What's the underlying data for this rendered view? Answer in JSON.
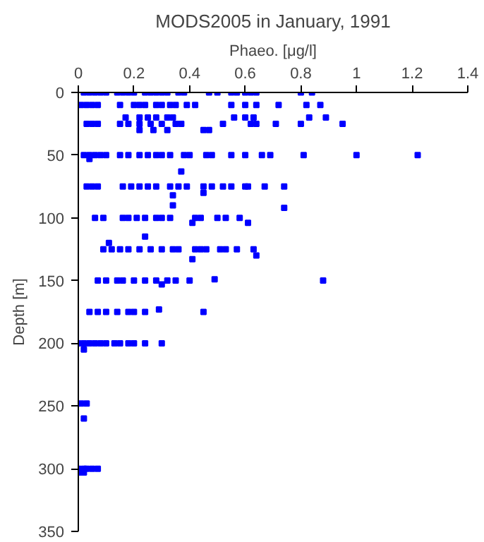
{
  "chart_data": {
    "type": "scatter",
    "title": "MODS2005 in January, 1991",
    "xlabel": "Phaeo. [μg/l]",
    "ylabel": "Depth [m]",
    "x": [
      0.02,
      0.04,
      0.06,
      0.08,
      0.1,
      0.14,
      0.16,
      0.18,
      0.2,
      0.24,
      0.26,
      0.28,
      0.3,
      0.32,
      0.36,
      0.38,
      0.47,
      0.5,
      0.55,
      0.57,
      0.6,
      0.62,
      0.64,
      0.8,
      0.84,
      0.01,
      0.03,
      0.05,
      0.07,
      0.15,
      0.2,
      0.22,
      0.24,
      0.28,
      0.3,
      0.33,
      0.35,
      0.39,
      0.42,
      0.55,
      0.6,
      0.64,
      0.72,
      0.82,
      0.87,
      0.17,
      0.22,
      0.25,
      0.28,
      0.32,
      0.34,
      0.56,
      0.6,
      0.63,
      0.83,
      0.89,
      0.03,
      0.05,
      0.07,
      0.15,
      0.18,
      0.22,
      0.26,
      0.3,
      0.35,
      0.37,
      0.52,
      0.62,
      0.64,
      0.71,
      0.8,
      0.95,
      0.22,
      0.27,
      0.32,
      0.45,
      0.47,
      0.02,
      0.04,
      0.06,
      0.08,
      0.1,
      0.15,
      0.18,
      0.22,
      0.25,
      0.28,
      0.3,
      0.33,
      0.38,
      0.4,
      0.46,
      0.48,
      0.55,
      0.6,
      0.66,
      0.69,
      0.81,
      1.0,
      1.22,
      0.04,
      0.37,
      0.03,
      0.05,
      0.07,
      0.16,
      0.19,
      0.22,
      0.25,
      0.28,
      0.33,
      0.36,
      0.39,
      0.45,
      0.48,
      0.52,
      0.55,
      0.6,
      0.61,
      0.67,
      0.74,
      0.45,
      0.34,
      0.34,
      0.74,
      0.06,
      0.09,
      0.16,
      0.18,
      0.21,
      0.24,
      0.28,
      0.3,
      0.33,
      0.42,
      0.44,
      0.5,
      0.53,
      0.58,
      0.61,
      0.41,
      0.24,
      0.11,
      0.09,
      0.12,
      0.15,
      0.18,
      0.22,
      0.26,
      0.3,
      0.34,
      0.36,
      0.42,
      0.44,
      0.46,
      0.51,
      0.53,
      0.57,
      0.63,
      0.64,
      0.41,
      0.07,
      0.1,
      0.14,
      0.16,
      0.2,
      0.24,
      0.28,
      0.32,
      0.35,
      0.4,
      0.88,
      0.49,
      0.3,
      0.04,
      0.07,
      0.1,
      0.14,
      0.18,
      0.2,
      0.24,
      0.45,
      0.29,
      0.0,
      0.02,
      0.04,
      0.06,
      0.08,
      0.1,
      0.13,
      0.15,
      0.18,
      0.2,
      0.24,
      0.3,
      0.02,
      0.01,
      0.03,
      0.02,
      0.0,
      0.02,
      0.03,
      0.05,
      0.07,
      0.01,
      0.02
    ],
    "values": [
      0,
      0,
      0,
      0,
      0,
      0,
      0,
      0,
      0,
      0,
      0,
      0,
      0,
      0,
      0,
      0,
      0,
      0,
      0,
      0,
      0,
      0,
      0,
      0,
      0,
      10,
      10,
      10,
      10,
      10,
      10,
      10,
      10,
      10,
      10,
      10,
      10,
      10,
      10,
      10,
      10,
      10,
      10,
      10,
      10,
      20,
      20,
      20,
      20,
      20,
      20,
      20,
      20,
      20,
      20,
      20,
      25,
      25,
      25,
      25,
      25,
      25,
      25,
      25,
      25,
      25,
      25,
      25,
      25,
      25,
      25,
      25,
      30,
      30,
      30,
      30,
      30,
      50,
      50,
      50,
      50,
      50,
      50,
      50,
      50,
      50,
      50,
      50,
      50,
      50,
      50,
      50,
      50,
      50,
      50,
      50,
      50,
      50,
      50,
      50,
      53,
      63,
      75,
      75,
      75,
      75,
      75,
      75,
      75,
      75,
      75,
      75,
      75,
      75,
      75,
      75,
      75,
      75,
      75,
      75,
      75,
      80,
      82,
      90,
      92,
      100,
      100,
      100,
      100,
      100,
      100,
      100,
      100,
      100,
      100,
      100,
      100,
      100,
      100,
      104,
      104,
      115,
      120,
      125,
      125,
      125,
      125,
      125,
      125,
      125,
      125,
      125,
      125,
      125,
      125,
      125,
      125,
      125,
      125,
      130,
      133,
      150,
      150,
      150,
      150,
      150,
      150,
      150,
      150,
      150,
      150,
      150,
      149,
      153,
      175,
      175,
      175,
      175,
      175,
      175,
      175,
      175,
      173,
      200,
      200,
      200,
      200,
      200,
      200,
      200,
      200,
      200,
      200,
      200,
      200,
      205,
      248,
      248,
      260,
      300,
      300,
      300,
      300,
      300,
      303,
      303
    ],
    "color": "#0000ff",
    "marker": "square",
    "xlim": [
      0,
      1.4
    ],
    "xticks": [
      0,
      0.2,
      0.4,
      0.6,
      0.8,
      1,
      1.2,
      1.4
    ],
    "ylim": [
      350,
      0
    ],
    "yticks": [
      0,
      50,
      100,
      150,
      200,
      250,
      300,
      350
    ],
    "grid": false
  }
}
